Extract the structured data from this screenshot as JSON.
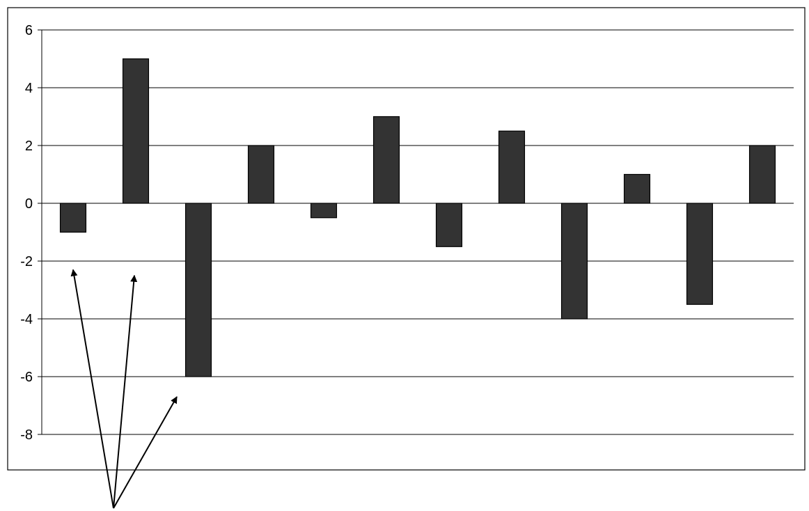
{
  "chart_data": {
    "type": "bar",
    "title": "",
    "xlabel": "",
    "ylabel": "",
    "categories": [
      "",
      "",
      "",
      "",
      "",
      "",
      "",
      "",
      "",
      "",
      "",
      ""
    ],
    "values": [
      -1,
      5,
      -6,
      2,
      -0.5,
      3,
      -1.5,
      2.5,
      -4,
      1,
      -3.5,
      2
    ],
    "ylim": [
      -8,
      6
    ],
    "yticks": [
      6,
      4,
      2,
      0,
      -2,
      -4,
      -6,
      -8
    ],
    "ytick_labels": [
      "6",
      "4",
      "2",
      "0",
      "-2",
      "-4",
      "-6",
      "-8"
    ],
    "grid": true,
    "legend": "none",
    "bar_color": "#333333",
    "annotations": [
      {
        "type": "arrow",
        "from": "bottom-left",
        "to": "bar 1"
      },
      {
        "type": "arrow",
        "from": "bottom-left",
        "to": "bar 2"
      },
      {
        "type": "arrow",
        "from": "bottom-left",
        "to": "bar 3"
      }
    ]
  }
}
